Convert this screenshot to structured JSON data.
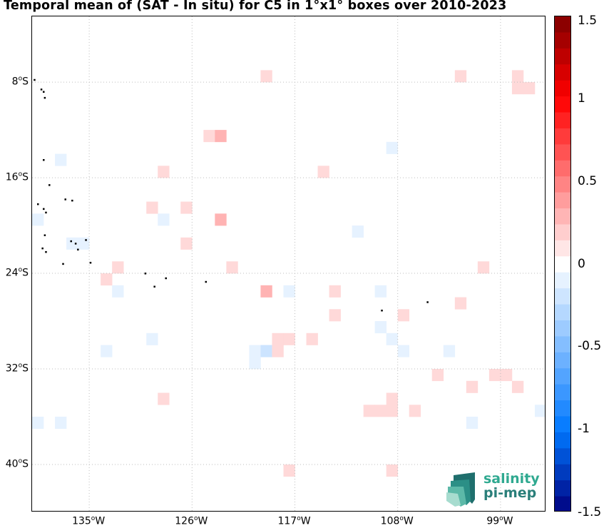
{
  "title": "Temporal mean of (SAT - In situ) for C5 in 1°x1° boxes over 2010-2023",
  "map": {
    "lon_range": [
      -140.0,
      -95.0
    ],
    "lat_range": [
      -44.0,
      -2.5
    ],
    "lat_ticks": [
      {
        "value": -8,
        "label": "8°S",
        "deg": "8",
        "sup": "o",
        "suf": "S"
      },
      {
        "value": -16,
        "label": "16°S",
        "deg": "16",
        "sup": "o",
        "suf": "S"
      },
      {
        "value": -24,
        "label": "24°S",
        "deg": "24",
        "sup": "o",
        "suf": "S"
      },
      {
        "value": -32,
        "label": "32°S",
        "deg": "32",
        "sup": "o",
        "suf": "S"
      },
      {
        "value": -40,
        "label": "40°S",
        "deg": "40",
        "sup": "o",
        "suf": "S"
      }
    ],
    "lon_ticks": [
      {
        "value": -135,
        "label": "135°W",
        "deg": "135",
        "sup": "o",
        "suf": "W"
      },
      {
        "value": -126,
        "label": "126°W",
        "deg": "126",
        "sup": "o",
        "suf": "W"
      },
      {
        "value": -117,
        "label": "117°W",
        "deg": "117",
        "sup": "o",
        "suf": "W"
      },
      {
        "value": -108,
        "label": "108°W",
        "deg": "108",
        "sup": "o",
        "suf": "W"
      },
      {
        "value": -99,
        "label": "99°W",
        "deg": "99",
        "sup": "o",
        "suf": "W"
      }
    ],
    "grid": "dotted",
    "land_color": "#000000"
  },
  "colorbar": {
    "range": [
      -1.5,
      1.5
    ],
    "ticks": [
      {
        "value": 1.5,
        "label": "1.5"
      },
      {
        "value": 1.0,
        "label": "1"
      },
      {
        "value": 0.5,
        "label": "0.5"
      },
      {
        "value": 0.0,
        "label": "0"
      },
      {
        "value": -0.5,
        "label": "-0.5"
      },
      {
        "value": -1.0,
        "label": "-1"
      },
      {
        "value": -1.5,
        "label": "-1.5"
      }
    ],
    "colormap": "blue-white-red"
  },
  "chart_data": {
    "type": "heatmap",
    "title": "Temporal mean of (SAT - In situ) for C5 in 1°x1° boxes over 2010-2023",
    "xlabel": "",
    "ylabel": "",
    "x_unit": "longitude (°W)",
    "y_unit": "latitude (°S)",
    "xlim": [
      -140.0,
      -95.0
    ],
    "ylim": [
      -44.0,
      -2.5
    ],
    "clim": [
      -1.5,
      1.5
    ],
    "cells": [
      {
        "lon": -119.5,
        "lat": -7.5,
        "value": 0.15
      },
      {
        "lon": -102.5,
        "lat": -7.5,
        "value": 0.15
      },
      {
        "lon": -97.5,
        "lat": -7.5,
        "value": 0.15
      },
      {
        "lon": -97.5,
        "lat": -8.5,
        "value": 0.15
      },
      {
        "lon": -96.5,
        "lat": -8.5,
        "value": 0.15
      },
      {
        "lon": -124.5,
        "lat": -12.5,
        "value": 0.15
      },
      {
        "lon": -123.5,
        "lat": -12.5,
        "value": 0.3
      },
      {
        "lon": -108.5,
        "lat": -13.5,
        "value": -0.1
      },
      {
        "lon": -137.5,
        "lat": -14.5,
        "value": -0.1
      },
      {
        "lon": -128.5,
        "lat": -15.5,
        "value": 0.15
      },
      {
        "lon": -114.5,
        "lat": -15.5,
        "value": 0.15
      },
      {
        "lon": -129.5,
        "lat": -18.5,
        "value": 0.15
      },
      {
        "lon": -126.5,
        "lat": -18.5,
        "value": 0.15
      },
      {
        "lon": -139.5,
        "lat": -19.5,
        "value": -0.1
      },
      {
        "lon": -128.5,
        "lat": -19.5,
        "value": -0.1
      },
      {
        "lon": -123.5,
        "lat": -19.5,
        "value": 0.3
      },
      {
        "lon": -111.5,
        "lat": -20.5,
        "value": -0.1
      },
      {
        "lon": -136.5,
        "lat": -21.5,
        "value": -0.1
      },
      {
        "lon": -135.5,
        "lat": -21.5,
        "value": -0.1
      },
      {
        "lon": -126.5,
        "lat": -21.5,
        "value": 0.15
      },
      {
        "lon": -132.5,
        "lat": -23.5,
        "value": 0.15
      },
      {
        "lon": -122.5,
        "lat": -23.5,
        "value": 0.15
      },
      {
        "lon": -100.5,
        "lat": -23.5,
        "value": 0.15
      },
      {
        "lon": -133.5,
        "lat": -24.5,
        "value": 0.15
      },
      {
        "lon": -132.5,
        "lat": -25.5,
        "value": -0.1
      },
      {
        "lon": -119.5,
        "lat": -25.5,
        "value": 0.3
      },
      {
        "lon": -117.5,
        "lat": -25.5,
        "value": -0.1
      },
      {
        "lon": -113.5,
        "lat": -25.5,
        "value": 0.15
      },
      {
        "lon": -109.5,
        "lat": -25.5,
        "value": -0.1
      },
      {
        "lon": -102.5,
        "lat": -26.5,
        "value": 0.15
      },
      {
        "lon": -113.5,
        "lat": -27.5,
        "value": 0.15
      },
      {
        "lon": -107.5,
        "lat": -27.5,
        "value": 0.15
      },
      {
        "lon": -109.5,
        "lat": -28.5,
        "value": -0.1
      },
      {
        "lon": -129.5,
        "lat": -29.5,
        "value": -0.1
      },
      {
        "lon": -118.5,
        "lat": -29.5,
        "value": 0.15
      },
      {
        "lon": -117.5,
        "lat": -29.5,
        "value": 0.15
      },
      {
        "lon": -115.5,
        "lat": -29.5,
        "value": 0.15
      },
      {
        "lon": -108.5,
        "lat": -29.5,
        "value": -0.1
      },
      {
        "lon": -133.5,
        "lat": -30.5,
        "value": -0.1
      },
      {
        "lon": -120.5,
        "lat": -30.5,
        "value": -0.1
      },
      {
        "lon": -119.5,
        "lat": -30.5,
        "value": -0.2
      },
      {
        "lon": -118.5,
        "lat": -30.5,
        "value": 0.15
      },
      {
        "lon": -107.5,
        "lat": -30.5,
        "value": -0.1
      },
      {
        "lon": -103.5,
        "lat": -30.5,
        "value": -0.1
      },
      {
        "lon": -120.5,
        "lat": -31.5,
        "value": -0.1
      },
      {
        "lon": -104.5,
        "lat": -32.5,
        "value": 0.15
      },
      {
        "lon": -99.5,
        "lat": -32.5,
        "value": 0.15
      },
      {
        "lon": -98.5,
        "lat": -32.5,
        "value": 0.15
      },
      {
        "lon": -101.5,
        "lat": -33.5,
        "value": 0.15
      },
      {
        "lon": -97.5,
        "lat": -33.5,
        "value": 0.15
      },
      {
        "lon": -128.5,
        "lat": -34.5,
        "value": 0.15
      },
      {
        "lon": -108.5,
        "lat": -34.5,
        "value": 0.15
      },
      {
        "lon": -110.5,
        "lat": -35.5,
        "value": 0.15
      },
      {
        "lon": -109.5,
        "lat": -35.5,
        "value": 0.15
      },
      {
        "lon": -108.5,
        "lat": -35.5,
        "value": 0.15
      },
      {
        "lon": -106.5,
        "lat": -35.5,
        "value": 0.15
      },
      {
        "lon": -95.5,
        "lat": -35.5,
        "value": -0.1
      },
      {
        "lon": -139.5,
        "lat": -36.5,
        "value": -0.1
      },
      {
        "lon": -137.5,
        "lat": -36.5,
        "value": -0.1
      },
      {
        "lon": -101.5,
        "lat": -36.5,
        "value": -0.1
      },
      {
        "lon": -117.5,
        "lat": -40.5,
        "value": 0.15
      },
      {
        "lon": -108.5,
        "lat": -40.5,
        "value": 0.15
      }
    ]
  },
  "islands": [
    {
      "lon": -139.8,
      "lat": -7.8
    },
    {
      "lon": -139.2,
      "lat": -8.6
    },
    {
      "lon": -139.0,
      "lat": -8.8
    },
    {
      "lon": -138.9,
      "lat": -9.3
    },
    {
      "lon": -139.0,
      "lat": -14.5
    },
    {
      "lon": -138.5,
      "lat": -16.6
    },
    {
      "lon": -137.1,
      "lat": -17.8
    },
    {
      "lon": -136.5,
      "lat": -17.9
    },
    {
      "lon": -139.5,
      "lat": -18.2
    },
    {
      "lon": -139.0,
      "lat": -18.6
    },
    {
      "lon": -138.8,
      "lat": -18.9
    },
    {
      "lon": -138.9,
      "lat": -20.8
    },
    {
      "lon": -136.6,
      "lat": -21.3
    },
    {
      "lon": -136.2,
      "lat": -21.5
    },
    {
      "lon": -135.3,
      "lat": -21.2
    },
    {
      "lon": -139.1,
      "lat": -21.9
    },
    {
      "lon": -138.8,
      "lat": -22.2
    },
    {
      "lon": -136.0,
      "lat": -22.0
    },
    {
      "lon": -137.3,
      "lat": -23.2
    },
    {
      "lon": -134.9,
      "lat": -23.1
    },
    {
      "lon": -130.1,
      "lat": -24.0
    },
    {
      "lon": -128.3,
      "lat": -24.4
    },
    {
      "lon": -124.8,
      "lat": -24.7
    },
    {
      "lon": -129.3,
      "lat": -25.1
    },
    {
      "lon": -109.4,
      "lat": -27.1
    },
    {
      "lon": -105.4,
      "lat": -26.4
    }
  ],
  "logo": {
    "line1": "salinity",
    "line2": "pi-mep"
  }
}
